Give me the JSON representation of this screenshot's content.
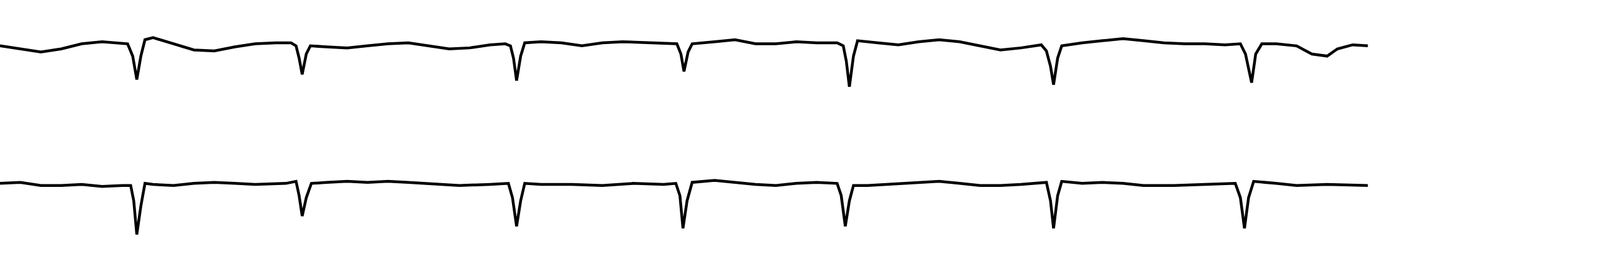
{
  "chart_data": [
    {
      "type": "line",
      "color": "#000000",
      "tick_labels": false,
      "grid": false,
      "xlim": [
        0,
        1340
      ],
      "ylim": [
        -45,
        25
      ],
      "x": [
        0,
        20,
        40,
        60,
        80,
        100,
        115,
        125,
        130,
        134,
        138,
        142,
        150,
        160,
        175,
        190,
        210,
        230,
        250,
        270,
        285,
        290,
        293,
        296,
        300,
        304,
        320,
        340,
        360,
        380,
        400,
        420,
        440,
        460,
        480,
        495,
        500,
        503,
        506,
        510,
        514,
        530,
        550,
        570,
        590,
        610,
        630,
        650,
        663,
        667,
        670,
        674,
        678,
        700,
        720,
        740,
        760,
        780,
        800,
        820,
        826,
        829,
        832,
        836,
        840,
        860,
        880,
        900,
        920,
        940,
        960,
        980,
        1000,
        1020,
        1025,
        1029,
        1032,
        1036,
        1040,
        1060,
        1080,
        1100,
        1120,
        1140,
        1160,
        1180,
        1200,
        1215,
        1220,
        1223,
        1226,
        1230,
        1236,
        1250,
        1270,
        1285,
        1300,
        1310,
        1325,
        1340
      ],
      "values": [
        0,
        -3,
        -6,
        -3,
        2,
        4,
        3,
        2,
        -10,
        -33,
        -10,
        6,
        8,
        5,
        0,
        -4,
        -5,
        -1,
        2,
        3,
        3,
        0,
        -12,
        -28,
        -8,
        0,
        -1,
        -2,
        0,
        2,
        3,
        0,
        -3,
        -2,
        1,
        2,
        0,
        -12,
        -34,
        -10,
        3,
        4,
        3,
        0,
        3,
        4,
        3,
        2,
        2,
        -8,
        -25,
        -6,
        2,
        4,
        6,
        2,
        2,
        4,
        3,
        3,
        0,
        -15,
        -40,
        -10,
        5,
        3,
        1,
        4,
        6,
        4,
        0,
        -4,
        -2,
        1,
        -5,
        -20,
        -38,
        -12,
        0,
        3,
        5,
        7,
        5,
        3,
        2,
        2,
        1,
        2,
        -8,
        -22,
        -36,
        -8,
        2,
        2,
        0,
        -8,
        -10,
        -3,
        1,
        0
      ]
    },
    {
      "type": "line",
      "color": "#000000",
      "tick_labels": false,
      "grid": false,
      "xlim": [
        0,
        1340
      ],
      "ylim": [
        -55,
        20
      ],
      "x": [
        0,
        20,
        40,
        60,
        80,
        100,
        120,
        128,
        131,
        134,
        138,
        142,
        150,
        170,
        190,
        210,
        230,
        250,
        280,
        290,
        293,
        296,
        300,
        305,
        320,
        340,
        360,
        380,
        400,
        420,
        450,
        480,
        498,
        502,
        506,
        510,
        514,
        530,
        560,
        590,
        620,
        650,
        662,
        666,
        669,
        673,
        678,
        700,
        720,
        740,
        760,
        780,
        800,
        820,
        824,
        828,
        832,
        836,
        850,
        880,
        900,
        920,
        940,
        960,
        980,
        1000,
        1025,
        1029,
        1032,
        1036,
        1040,
        1060,
        1080,
        1100,
        1120,
        1150,
        1180,
        1210,
        1215,
        1219,
        1223,
        1228,
        1250,
        1270,
        1300,
        1340
      ],
      "values": [
        2,
        3,
        0,
        0,
        1,
        -1,
        0,
        0,
        -15,
        -48,
        -20,
        2,
        1,
        0,
        2,
        3,
        2,
        1,
        2,
        4,
        -10,
        -30,
        -12,
        2,
        3,
        4,
        3,
        4,
        3,
        2,
        0,
        1,
        2,
        -12,
        -40,
        -15,
        2,
        1,
        1,
        0,
        2,
        1,
        2,
        -10,
        -42,
        -15,
        3,
        5,
        3,
        1,
        0,
        2,
        3,
        2,
        -10,
        -40,
        -15,
        0,
        0,
        2,
        3,
        4,
        2,
        0,
        0,
        1,
        3,
        -15,
        -42,
        -10,
        4,
        2,
        3,
        2,
        0,
        0,
        1,
        2,
        -12,
        -42,
        -12,
        4,
        2,
        0,
        1,
        0
      ]
    }
  ]
}
